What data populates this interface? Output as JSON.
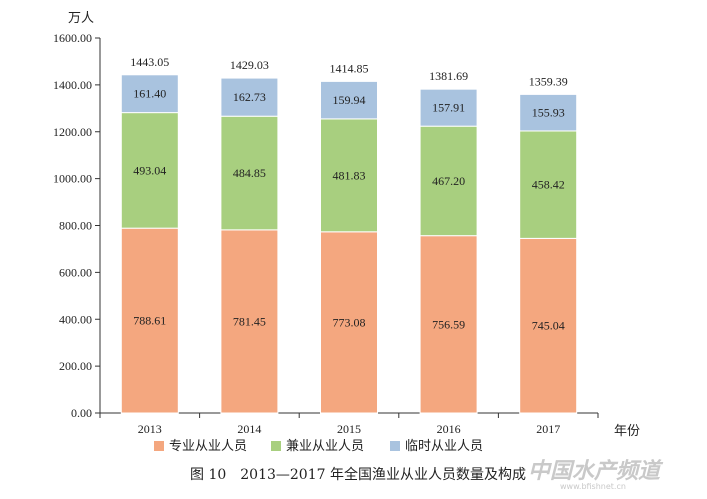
{
  "chart_data": {
    "type": "bar",
    "stacked": true,
    "categories": [
      "2013",
      "2014",
      "2015",
      "2016",
      "2017"
    ],
    "series": [
      {
        "name": "专业从业人员",
        "color": "#f4a77f",
        "values": [
          788.61,
          781.45,
          773.08,
          756.59,
          745.04
        ]
      },
      {
        "name": "兼业从业人员",
        "color": "#a8cf7f",
        "values": [
          493.04,
          484.85,
          481.83,
          467.2,
          458.42
        ]
      },
      {
        "name": "临时从业人员",
        "color": "#a9c3df",
        "values": [
          161.4,
          162.73,
          159.94,
          157.91,
          155.93
        ]
      }
    ],
    "totals": [
      "1443.05",
      "1429.03",
      "1414.85",
      "1381.69",
      "1359.39"
    ],
    "value_labels": [
      [
        "788.61",
        "781.45",
        "773.08",
        "756.59",
        "745.04"
      ],
      [
        "493.04",
        "484.85",
        "481.83",
        "467.20",
        "458.42"
      ],
      [
        "161.40",
        "162.73",
        "159.94",
        "157.91",
        "155.93"
      ]
    ],
    "y_ticks": [
      "0.00",
      "200.00",
      "400.00",
      "600.00",
      "800.00",
      "1000.00",
      "1200.00",
      "1400.00",
      "1600.00"
    ],
    "ylim": [
      0,
      1600
    ],
    "ylabel": "万人",
    "xlabel": "年份",
    "title": "图 10　2013—2017 年全国渔业从业人员数量及构成",
    "grid": false,
    "legend_position": "bottom"
  },
  "watermark": {
    "text": "中国水产频道",
    "url": "www.bfishnet.cn"
  }
}
